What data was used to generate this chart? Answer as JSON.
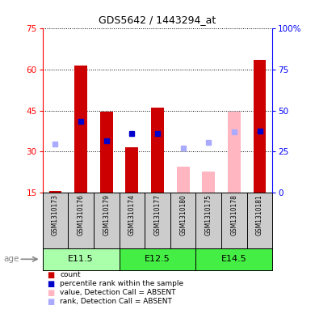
{
  "title": "GDS5642 / 1443294_at",
  "samples": [
    "GSM1310173",
    "GSM1310176",
    "GSM1310179",
    "GSM1310174",
    "GSM1310177",
    "GSM1310180",
    "GSM1310175",
    "GSM1310178",
    "GSM1310181"
  ],
  "age_groups": [
    {
      "label": "E11.5",
      "start": 0,
      "end": 3,
      "color": "#aaffaa"
    },
    {
      "label": "E12.5",
      "start": 3,
      "end": 6,
      "color": "#44ee44"
    },
    {
      "label": "E14.5",
      "start": 6,
      "end": 9,
      "color": "#44ee44"
    }
  ],
  "count_values": [
    15.5,
    61.5,
    44.5,
    31.5,
    46.0,
    null,
    null,
    null,
    63.5
  ],
  "percentile_values": [
    null,
    43.5,
    31.5,
    36.0,
    36.0,
    null,
    null,
    null,
    37.5
  ],
  "absent_value_values": [
    null,
    null,
    null,
    null,
    null,
    24.5,
    22.5,
    44.5,
    null
  ],
  "absent_rank_values": [
    29.5,
    null,
    null,
    null,
    null,
    27.0,
    30.5,
    37.0,
    null
  ],
  "ylim_left": [
    15,
    75
  ],
  "ylim_right": [
    0,
    100
  ],
  "left_yticks": [
    15,
    30,
    45,
    60,
    75
  ],
  "right_yticks": [
    0,
    25,
    50,
    75,
    100
  ],
  "bar_width": 0.5,
  "count_color": "#CC0000",
  "percentile_color": "#0000CC",
  "absent_value_color": "#FFB6C1",
  "absent_rank_color": "#aaaaff",
  "background_color": "#ffffff",
  "grid_color": "#000000",
  "legend_items": [
    {
      "label": "count",
      "color": "#CC0000"
    },
    {
      "label": "percentile rank within the sample",
      "color": "#0000CC"
    },
    {
      "label": "value, Detection Call = ABSENT",
      "color": "#FFB6C1"
    },
    {
      "label": "rank, Detection Call = ABSENT",
      "color": "#aaaaff"
    }
  ]
}
